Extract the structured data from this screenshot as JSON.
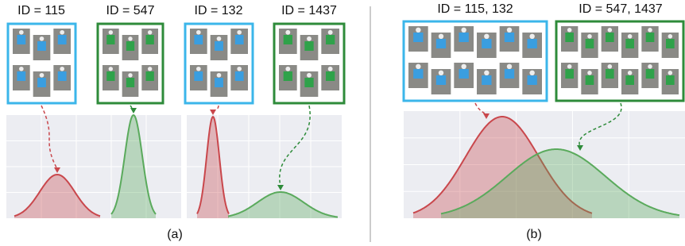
{
  "panel_a": {
    "labels": [
      "ID = 115",
      "ID = 547",
      "ID = 132",
      "ID = 1437"
    ],
    "caption": "(a)"
  },
  "panel_b": {
    "labels": [
      "ID = 115, 132",
      "ID = 547, 1437"
    ],
    "caption": "(b)"
  }
}
